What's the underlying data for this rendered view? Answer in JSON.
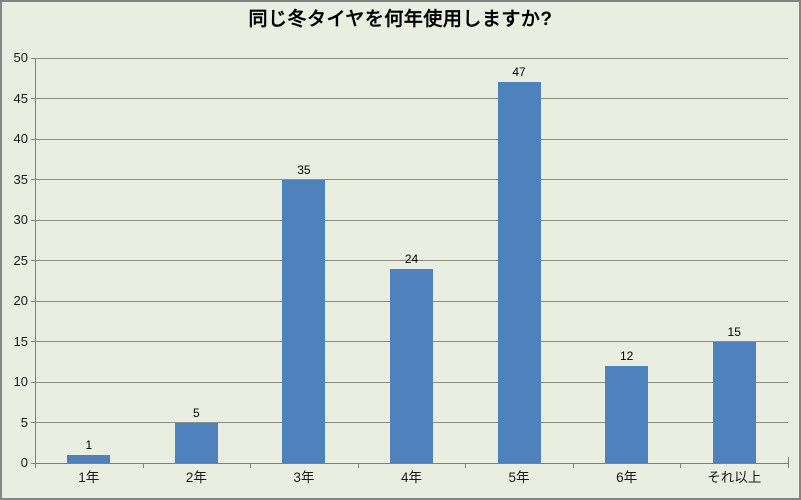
{
  "chart_data": {
    "type": "bar",
    "title": "同じ冬タイヤを何年使用しますか?",
    "categories": [
      "1年",
      "2年",
      "3年",
      "4年",
      "5年",
      "6年",
      "それ以上"
    ],
    "values": [
      1,
      5,
      35,
      24,
      47,
      12,
      15
    ],
    "xlabel": "",
    "ylabel": "",
    "ylim": [
      0,
      50
    ],
    "ytick_step": 5,
    "ytick_labels": [
      "0",
      "5",
      "10",
      "15",
      "20",
      "25",
      "30",
      "35",
      "40",
      "45",
      "50"
    ],
    "data_labels": [
      "1",
      "5",
      "35",
      "24",
      "47",
      "12",
      "15"
    ],
    "grid": "horizontal",
    "legend": "none",
    "colors": {
      "bar": "#4f81bd",
      "background": "#eaeee0",
      "gridline": "#8c8c86",
      "axis": "#7f7f7f",
      "border": "#848484",
      "tick": "#7f7f7f",
      "axis_text": "#1a1a1a",
      "title_text": "#000000",
      "value_text": "#000000"
    }
  }
}
